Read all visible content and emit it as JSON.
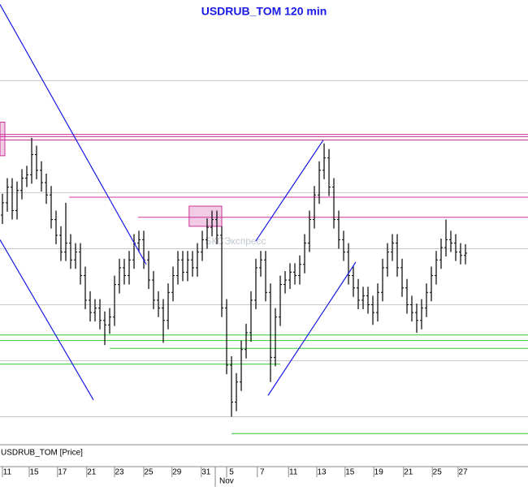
{
  "chart_data": {
    "type": "ohlc",
    "title": "USDRUB_TOM 120 min",
    "series_name": "USDRUB_TOM [Price]",
    "watermark": "БКСЭкспресс",
    "color": "#000000",
    "grid": true,
    "xlim": [
      -0.5,
      107.83
    ],
    "ylim": [
      64.75,
      68.72
    ],
    "yticks": [
      65,
      65.5,
      66,
      66.5,
      67,
      67.5,
      68
    ],
    "xticks": [
      {
        "value": 1,
        "label": "11"
      },
      {
        "value": 6.5,
        "label": "15"
      },
      {
        "value": 12.3,
        "label": "17"
      },
      {
        "value": 18.3,
        "label": "21"
      },
      {
        "value": 24,
        "label": "23"
      },
      {
        "value": 30,
        "label": "25"
      },
      {
        "value": 35.8,
        "label": "29"
      },
      {
        "value": 41.8,
        "label": "31"
      },
      {
        "value": 47,
        "label": "5"
      },
      {
        "value": 53.3,
        "label": "7"
      },
      {
        "value": 59.7,
        "label": "11"
      },
      {
        "value": 65.5,
        "label": "13"
      },
      {
        "value": 71.3,
        "label": "15"
      },
      {
        "value": 77.2,
        "label": "19"
      },
      {
        "value": 83.3,
        "label": "21"
      },
      {
        "value": 89.2,
        "label": "25"
      },
      {
        "value": 94.5,
        "label": "27"
      }
    ],
    "xmajor": [
      {
        "value": 44.5,
        "label": "Nov"
      }
    ],
    "open": [
      66.8,
      66.91,
      67.05,
      66.84,
      67.02,
      67.13,
      67.16,
      67.34,
      67.2,
      67.09,
      66.98,
      66.76,
      66.62,
      66.47,
      66.55,
      66.4,
      66.47,
      66.26,
      66.04,
      65.93,
      65.97,
      65.86,
      65.82,
      65.89,
      66.18,
      66.33,
      66.26,
      66.4,
      66.55,
      66.58,
      66.4,
      66.22,
      66.04,
      65.97,
      65.86,
      66.11,
      66.26,
      66.4,
      66.29,
      66.4,
      66.33,
      66.47,
      66.58,
      66.69,
      66.76,
      66.62,
      65.97,
      65.46,
      65.13,
      65.31,
      65.6,
      65.75,
      66.04,
      66.33,
      66.4,
      66.11,
      65.53,
      65.89,
      66.18,
      66.22,
      66.29,
      66.26,
      66.36,
      66.55,
      66.76,
      66.98,
      67.2,
      67.31,
      67.05,
      66.76,
      66.58,
      66.47,
      66.26,
      66.15,
      66.04,
      66.08,
      66.0,
      65.93,
      66.11,
      66.33,
      66.47,
      66.55,
      66.33,
      66.15,
      66.0,
      65.93,
      65.86,
      65.97,
      66.11,
      66.26,
      66.4,
      66.51,
      66.58,
      66.55,
      66.47,
      66.44
    ],
    "high": [
      66.99,
      67.13,
      67.13,
      67.1,
      67.21,
      67.24,
      67.49,
      67.42,
      67.28,
      67.17,
      67.06,
      66.84,
      66.7,
      66.91,
      66.63,
      66.55,
      66.55,
      66.34,
      66.12,
      66.05,
      66.05,
      65.94,
      65.97,
      66.26,
      66.41,
      66.41,
      66.48,
      66.63,
      66.66,
      66.66,
      66.48,
      66.3,
      66.12,
      66.05,
      66.19,
      66.34,
      66.48,
      66.48,
      66.48,
      66.48,
      66.55,
      66.66,
      66.77,
      66.84,
      66.84,
      66.7,
      66.05,
      65.54,
      65.39,
      65.68,
      65.83,
      66.12,
      66.41,
      66.48,
      66.48,
      66.19,
      65.97,
      66.26,
      66.3,
      66.37,
      66.37,
      66.44,
      66.63,
      66.84,
      67.06,
      67.28,
      67.44,
      67.39,
      67.13,
      66.84,
      66.66,
      66.55,
      66.34,
      66.23,
      66.16,
      66.16,
      66.08,
      66.19,
      66.41,
      66.55,
      66.63,
      66.63,
      66.41,
      66.23,
      66.08,
      66.01,
      66.05,
      66.19,
      66.34,
      66.48,
      66.59,
      66.76,
      66.66,
      66.63,
      66.55,
      66.54
    ],
    "low": [
      66.72,
      66.83,
      66.76,
      66.76,
      66.94,
      67.05,
      67.08,
      67.12,
      67.01,
      66.9,
      66.68,
      66.54,
      66.39,
      66.39,
      66.32,
      66.32,
      66.18,
      65.96,
      65.85,
      65.85,
      65.78,
      65.64,
      65.74,
      65.81,
      66.1,
      66.18,
      66.18,
      66.32,
      66.47,
      66.32,
      66.14,
      65.96,
      65.89,
      65.66,
      65.78,
      66.03,
      66.18,
      66.21,
      66.21,
      66.25,
      66.25,
      66.39,
      66.5,
      66.61,
      66.54,
      65.89,
      65.38,
      65.0,
      65.05,
      65.23,
      65.52,
      65.67,
      65.96,
      66.25,
      66.03,
      65.31,
      65.45,
      65.81,
      66.1,
      66.14,
      66.18,
      66.18,
      66.28,
      66.47,
      66.68,
      66.9,
      67.12,
      66.97,
      66.68,
      66.5,
      66.39,
      66.18,
      66.07,
      65.96,
      65.96,
      65.92,
      65.82,
      65.85,
      66.03,
      66.25,
      66.39,
      66.25,
      66.07,
      65.92,
      65.85,
      65.75,
      65.78,
      65.89,
      66.03,
      66.18,
      66.32,
      66.43,
      66.47,
      66.39,
      66.36,
      66.36
    ],
    "close": [
      66.91,
      67.05,
      66.84,
      67.02,
      67.13,
      67.16,
      67.34,
      67.2,
      67.09,
      66.98,
      66.76,
      66.62,
      66.47,
      66.55,
      66.4,
      66.47,
      66.26,
      66.04,
      65.93,
      65.97,
      65.86,
      65.82,
      65.89,
      66.18,
      66.33,
      66.26,
      66.4,
      66.55,
      66.58,
      66.4,
      66.22,
      66.04,
      65.97,
      65.86,
      66.11,
      66.26,
      66.4,
      66.29,
      66.4,
      66.33,
      66.47,
      66.58,
      66.69,
      66.76,
      66.62,
      65.97,
      65.46,
      65.13,
      65.31,
      65.6,
      65.75,
      66.04,
      66.33,
      66.4,
      66.11,
      65.53,
      65.89,
      66.18,
      66.22,
      66.29,
      66.26,
      66.36,
      66.55,
      66.76,
      66.98,
      67.2,
      67.31,
      67.05,
      66.76,
      66.58,
      66.47,
      66.26,
      66.15,
      66.04,
      66.08,
      66.0,
      65.93,
      66.11,
      66.33,
      66.47,
      66.55,
      66.33,
      66.15,
      66.0,
      65.93,
      65.86,
      65.97,
      66.11,
      66.26,
      66.4,
      66.51,
      66.58,
      66.55,
      66.47,
      66.44,
      66.46
    ],
    "levels": [
      {
        "value": 67.52,
        "start": -0.5,
        "end": 107.83,
        "color": "#cc3399"
      },
      {
        "value": 67.5,
        "start": -0.5,
        "end": 107.83,
        "color": "#cc3399"
      },
      {
        "value": 67.47,
        "start": -0.5,
        "end": 107.83,
        "color": "#cc3399"
      },
      {
        "value": 66.96,
        "start": 13.7,
        "end": 107.83,
        "color": "#cc3399"
      },
      {
        "value": 66.78,
        "start": 27.8,
        "end": 107.83,
        "color": "#cc3399"
      },
      {
        "value": 65.73,
        "start": -0.5,
        "end": 107.83,
        "color": "#33cc33"
      },
      {
        "value": 65.68,
        "start": -0.5,
        "end": 107.83,
        "color": "#33cc33"
      },
      {
        "value": 65.61,
        "start": 22,
        "end": 107.83,
        "color": "#33cc33"
      },
      {
        "value": 65.47,
        "start": -0.5,
        "end": 57,
        "color": "#33cc33"
      },
      {
        "value": 64.85,
        "start": 47,
        "end": 107.83,
        "color": "#33cc33"
      }
    ],
    "boxes": [
      {
        "x": [
          -0.5,
          0.5
        ],
        "y": [
          67.33,
          67.63
        ],
        "color": "#cc3399"
      },
      {
        "x": [
          38.3,
          45
        ],
        "y": [
          66.7,
          66.88
        ],
        "color": "#cc3399"
      }
    ],
    "trendlines": [
      {
        "x": [
          -0.5,
          29.5
        ],
        "y": [
          68.68,
          66.36
        ],
        "color": "#1a1ae6"
      },
      {
        "x": [
          -0.5,
          18.67
        ],
        "y": [
          66.58,
          65.15
        ],
        "color": "#1a1ae6"
      },
      {
        "x": [
          52,
          65.83
        ],
        "y": [
          66.57,
          67.47
        ],
        "color": "#1a1ae6"
      },
      {
        "x": [
          54.5,
          72.5
        ],
        "y": [
          65.19,
          66.38
        ],
        "color": "#1a1ae6"
      }
    ]
  }
}
